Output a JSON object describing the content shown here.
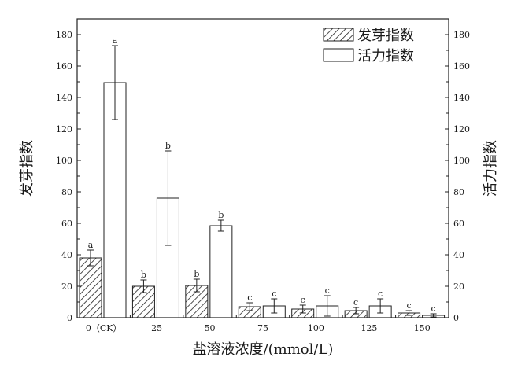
{
  "chart_data": {
    "type": "bar",
    "xlabel": "盐溶液浓度/(mmol/L)",
    "ylabel_left": "发芽指数",
    "ylabel_right": "活力指数",
    "ylim": [
      0,
      190
    ],
    "yticks": [
      0,
      20,
      40,
      60,
      80,
      100,
      120,
      140,
      160,
      180
    ],
    "categories": [
      "0（CK）",
      "25",
      "50",
      "75",
      "100",
      "125",
      "150"
    ],
    "series": [
      {
        "name": "发芽指数",
        "style": "hatched",
        "values": [
          38,
          20,
          20.5,
          7,
          5.5,
          4.5,
          3
        ],
        "errors": [
          5,
          4,
          4,
          2.5,
          2.5,
          2,
          1.5
        ],
        "labels": [
          "a",
          "b",
          "b",
          "c",
          "c",
          "c",
          "c"
        ]
      },
      {
        "name": "活力指数",
        "style": "open",
        "values": [
          149.5,
          76,
          58.5,
          7.5,
          7.5,
          7.5,
          1.5
        ],
        "errors": [
          23.5,
          30,
          3.5,
          4.5,
          6.5,
          4.5,
          1
        ],
        "labels": [
          "a",
          "b",
          "b",
          "c",
          "c",
          "c",
          "c"
        ]
      }
    ],
    "legend_position": "top-right",
    "grid": false
  }
}
